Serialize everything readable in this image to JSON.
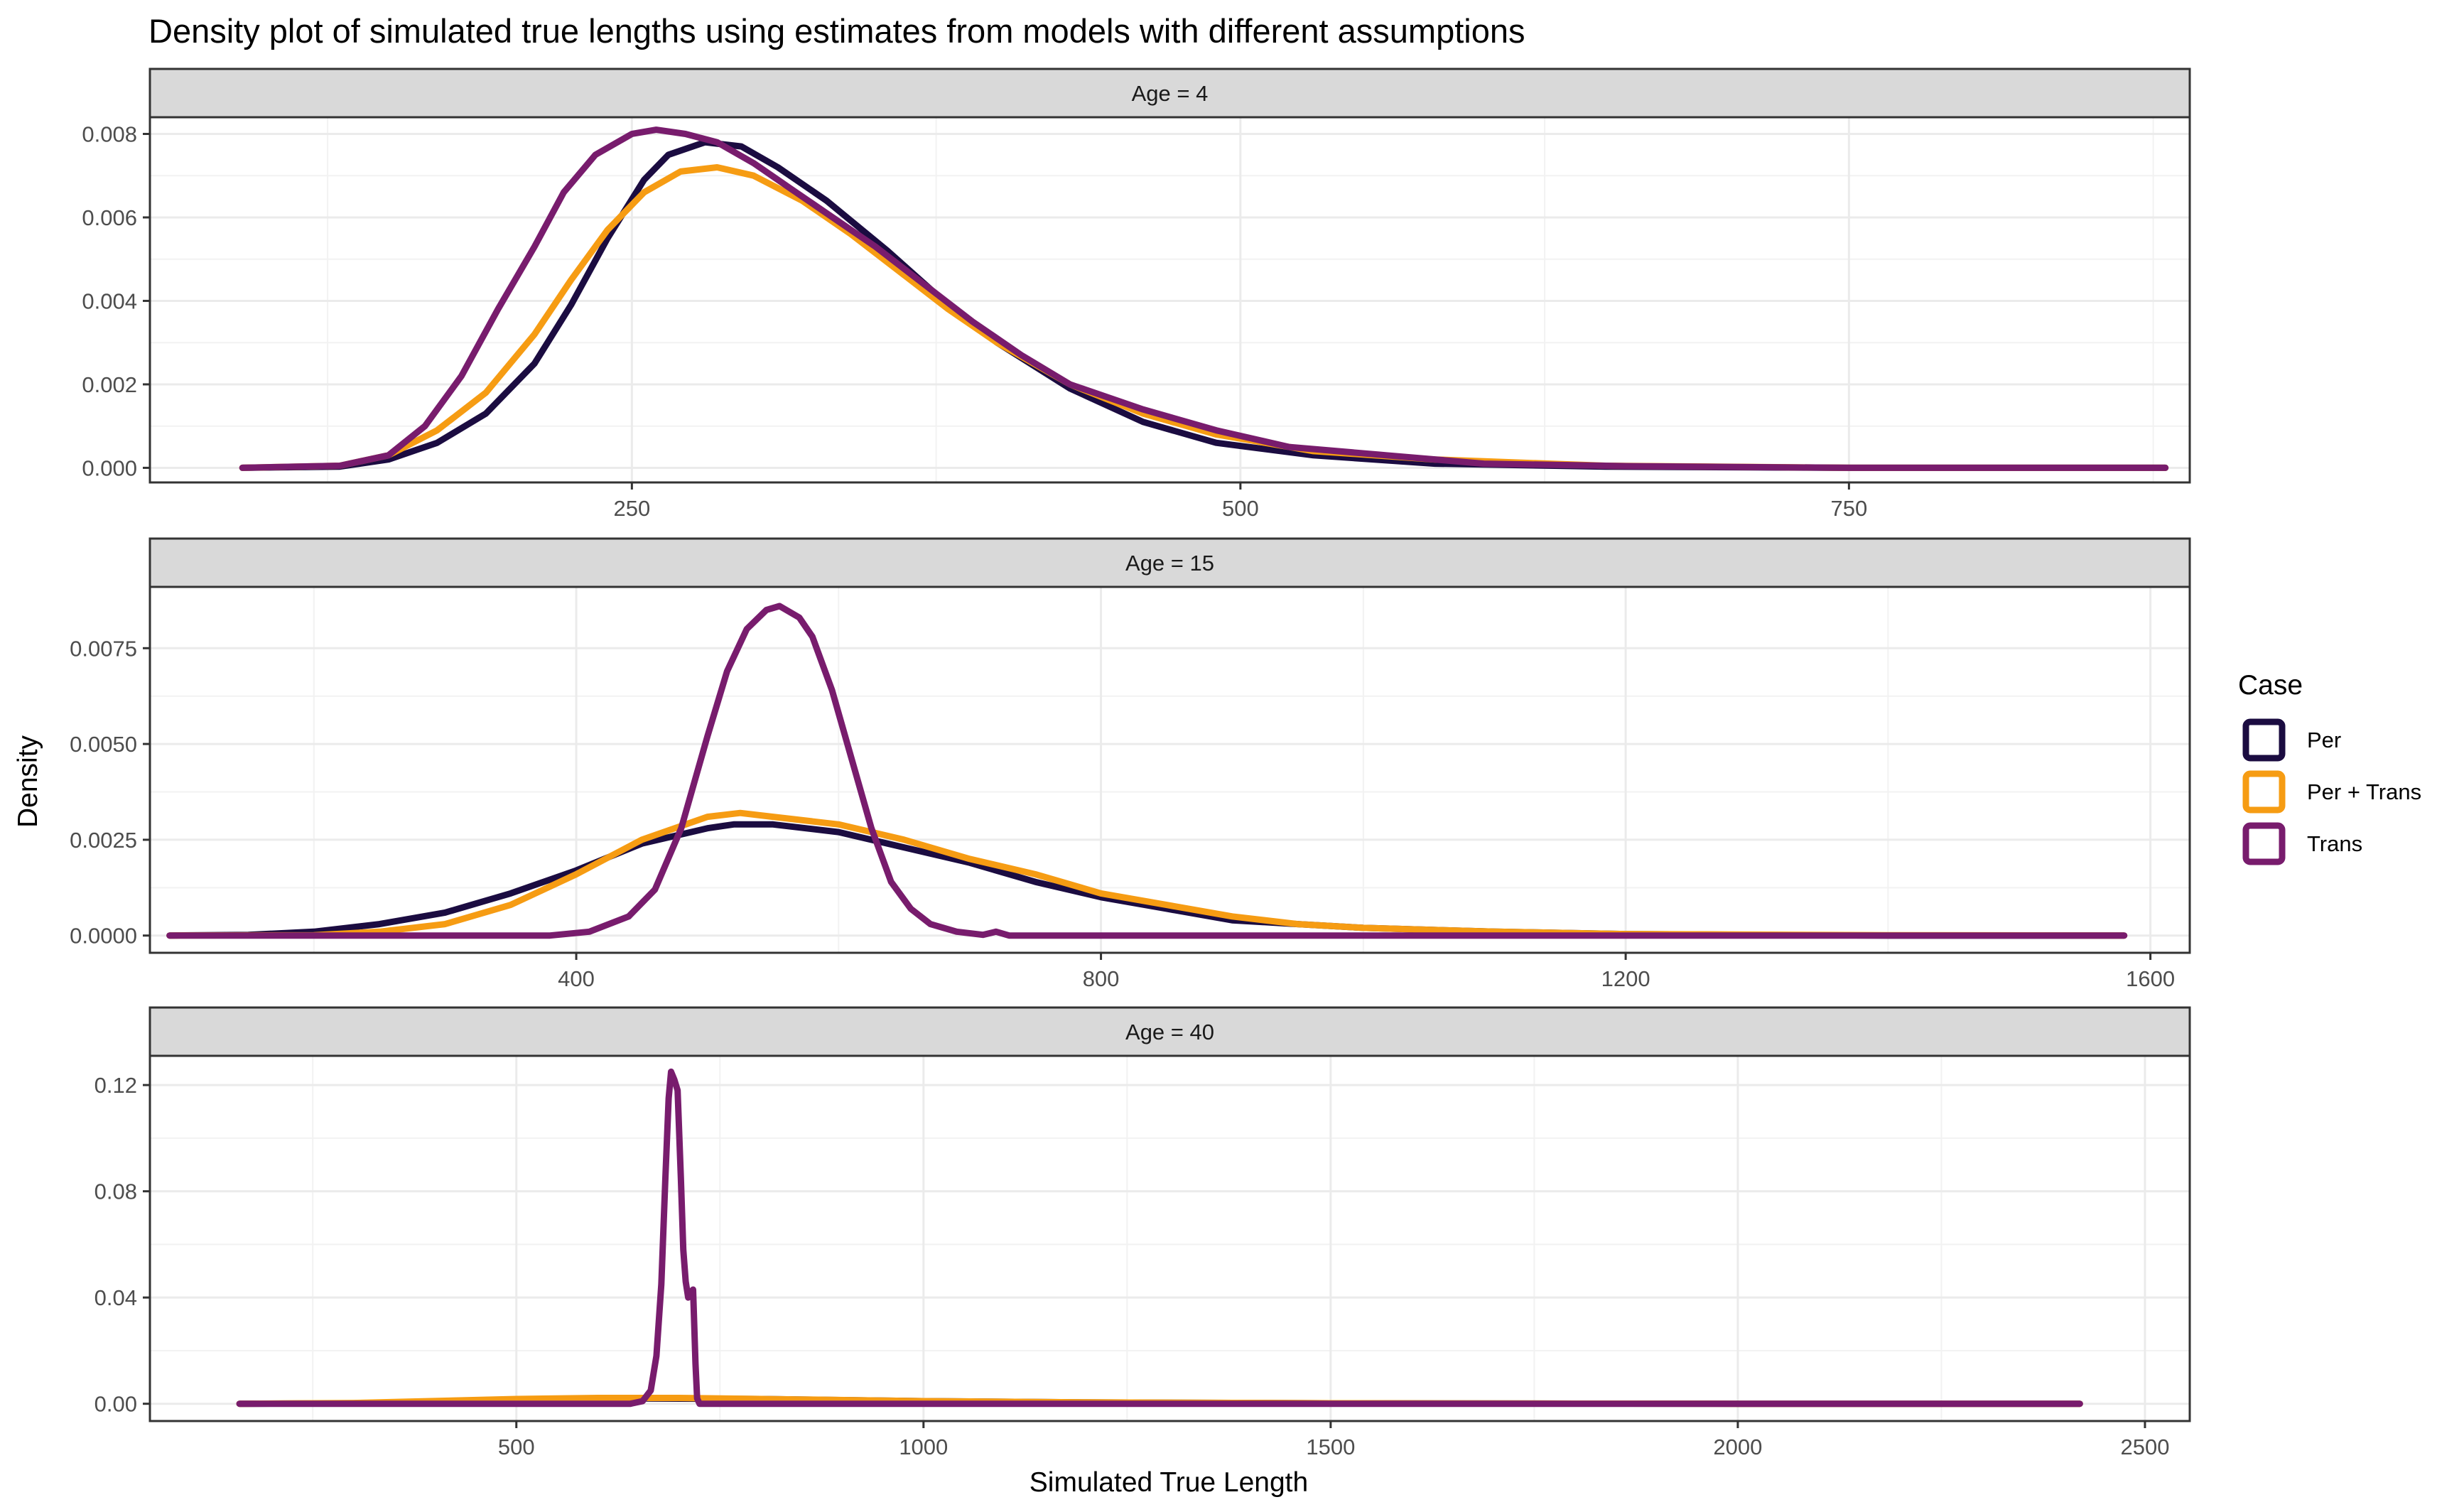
{
  "chart_data": {
    "type": "line",
    "title": "Density plot of simulated true lengths using estimates from models with different assumptions",
    "xlabel": "Simulated True Length",
    "ylabel": "Density",
    "grid": true,
    "legend": {
      "title": "Case",
      "placement": "right",
      "entries": [
        {
          "name": "Per",
          "color": "#1B0C41"
        },
        {
          "name": "Per + Trans",
          "color": "#F69C13"
        },
        {
          "name": "Trans",
          "color": "#781C6D"
        }
      ]
    },
    "panels": [
      {
        "strip": "Age = 4",
        "xlim": [
          52,
          890
        ],
        "ylim": [
          -0.00035,
          0.0084
        ],
        "x_ticks": [
          250,
          500,
          750
        ],
        "x_tick_labels": [
          "250",
          "500",
          "750"
        ],
        "x_minor": [
          125,
          375,
          625,
          875
        ],
        "y_ticks": [
          0,
          0.002,
          0.004,
          0.006,
          0.008
        ],
        "y_tick_labels": [
          "0.000",
          "0.002",
          "0.004",
          "0.006",
          "0.008"
        ],
        "series": [
          {
            "name": "Per",
            "color": "#1B0C41",
            "points": [
              [
                90,
                0
              ],
              [
                130,
                3e-05
              ],
              [
                150,
                0.0002
              ],
              [
                170,
                0.0006
              ],
              [
                190,
                0.0013
              ],
              [
                210,
                0.0025
              ],
              [
                225,
                0.0039
              ],
              [
                240,
                0.0055
              ],
              [
                255,
                0.0069
              ],
              [
                265,
                0.0075
              ],
              [
                280,
                0.0078
              ],
              [
                295,
                0.0077
              ],
              [
                310,
                0.0072
              ],
              [
                330,
                0.0064
              ],
              [
                355,
                0.0052
              ],
              [
                380,
                0.0039
              ],
              [
                400,
                0.003
              ],
              [
                430,
                0.0019
              ],
              [
                460,
                0.0011
              ],
              [
                490,
                0.0006
              ],
              [
                530,
                0.0003
              ],
              [
                580,
                0.0001
              ],
              [
                650,
                3e-05
              ],
              [
                750,
                0
              ],
              [
                880,
                0
              ]
            ]
          },
          {
            "name": "Per + Trans",
            "color": "#F69C13",
            "points": [
              [
                90,
                0
              ],
              [
                130,
                5e-05
              ],
              [
                150,
                0.0003
              ],
              [
                170,
                0.0009
              ],
              [
                190,
                0.0018
              ],
              [
                210,
                0.0032
              ],
              [
                225,
                0.0045
              ],
              [
                240,
                0.0057
              ],
              [
                255,
                0.0066
              ],
              [
                270,
                0.0071
              ],
              [
                285,
                0.0072
              ],
              [
                300,
                0.007
              ],
              [
                320,
                0.0064
              ],
              [
                340,
                0.0056
              ],
              [
                360,
                0.0047
              ],
              [
                380,
                0.0038
              ],
              [
                400,
                0.003
              ],
              [
                430,
                0.002
              ],
              [
                460,
                0.0013
              ],
              [
                490,
                0.0008
              ],
              [
                530,
                0.0004
              ],
              [
                580,
                0.0002
              ],
              [
                650,
                5e-05
              ],
              [
                750,
                0
              ],
              [
                880,
                0
              ]
            ]
          },
          {
            "name": "Trans",
            "color": "#781C6D",
            "points": [
              [
                90,
                0
              ],
              [
                130,
                5e-05
              ],
              [
                150,
                0.0003
              ],
              [
                165,
                0.001
              ],
              [
                180,
                0.0022
              ],
              [
                195,
                0.0038
              ],
              [
                210,
                0.0053
              ],
              [
                222,
                0.0066
              ],
              [
                235,
                0.0075
              ],
              [
                250,
                0.008
              ],
              [
                260,
                0.0081
              ],
              [
                272,
                0.008
              ],
              [
                285,
                0.0078
              ],
              [
                300,
                0.0073
              ],
              [
                315,
                0.0067
              ],
              [
                330,
                0.0061
              ],
              [
                350,
                0.0053
              ],
              [
                370,
                0.0044
              ],
              [
                390,
                0.0035
              ],
              [
                410,
                0.0027
              ],
              [
                430,
                0.002
              ],
              [
                460,
                0.0014
              ],
              [
                490,
                0.0009
              ],
              [
                520,
                0.0005
              ],
              [
                560,
                0.0003
              ],
              [
                600,
                0.0001
              ],
              [
                660,
                4e-05
              ],
              [
                750,
                0
              ],
              [
                880,
                0
              ]
            ]
          }
        ]
      },
      {
        "strip": "Age = 15",
        "xlim": [
          75,
          1630
        ],
        "ylim": [
          -0.00045,
          0.0091
        ],
        "x_ticks": [
          400,
          800,
          1200,
          1600
        ],
        "x_tick_labels": [
          "400",
          "800",
          "1200",
          "1600"
        ],
        "x_minor": [
          200,
          600,
          1000,
          1400
        ],
        "y_ticks": [
          0,
          0.0025,
          0.005,
          0.0075
        ],
        "y_tick_labels": [
          "0.0000",
          "0.0025",
          "0.0050",
          "0.0075"
        ],
        "series": [
          {
            "name": "Per",
            "color": "#1B0C41",
            "points": [
              [
                90,
                0
              ],
              [
                150,
                2e-05
              ],
              [
                200,
                0.0001
              ],
              [
                250,
                0.0003
              ],
              [
                300,
                0.0006
              ],
              [
                350,
                0.0011
              ],
              [
                400,
                0.0017
              ],
              [
                450,
                0.0024
              ],
              [
                500,
                0.0028
              ],
              [
                520,
                0.0029
              ],
              [
                550,
                0.0029
              ],
              [
                600,
                0.0027
              ],
              [
                650,
                0.0023
              ],
              [
                700,
                0.0019
              ],
              [
                750,
                0.0014
              ],
              [
                800,
                0.001
              ],
              [
                850,
                0.0007
              ],
              [
                900,
                0.0004
              ],
              [
                950,
                0.0003
              ],
              [
                1000,
                0.0002
              ],
              [
                1100,
                0.0001
              ],
              [
                1200,
                4e-05
              ],
              [
                1300,
                2e-05
              ],
              [
                1400,
                0
              ],
              [
                1580,
                0
              ]
            ]
          },
          {
            "name": "Per + Trans",
            "color": "#F69C13",
            "points": [
              [
                90,
                0
              ],
              [
                200,
                1e-05
              ],
              [
                250,
                0.0001
              ],
              [
                300,
                0.0003
              ],
              [
                350,
                0.0008
              ],
              [
                400,
                0.0016
              ],
              [
                450,
                0.0025
              ],
              [
                500,
                0.0031
              ],
              [
                525,
                0.0032
              ],
              [
                550,
                0.0031
              ],
              [
                600,
                0.0029
              ],
              [
                650,
                0.0025
              ],
              [
                700,
                0.002
              ],
              [
                750,
                0.0016
              ],
              [
                800,
                0.0011
              ],
              [
                850,
                0.0008
              ],
              [
                900,
                0.0005
              ],
              [
                950,
                0.0003
              ],
              [
                1000,
                0.0002
              ],
              [
                1100,
                0.0001
              ],
              [
                1200,
                4e-05
              ],
              [
                1400,
                1e-05
              ],
              [
                1580,
                0
              ]
            ]
          },
          {
            "name": "Trans",
            "color": "#781C6D",
            "points": [
              [
                90,
                0
              ],
              [
                380,
                0
              ],
              [
                410,
                0.0001
              ],
              [
                440,
                0.0005
              ],
              [
                460,
                0.0012
              ],
              [
                480,
                0.0028
              ],
              [
                500,
                0.0052
              ],
              [
                515,
                0.0069
              ],
              [
                530,
                0.008
              ],
              [
                545,
                0.0085
              ],
              [
                555,
                0.0086
              ],
              [
                570,
                0.0083
              ],
              [
                580,
                0.0078
              ],
              [
                595,
                0.0064
              ],
              [
                610,
                0.0046
              ],
              [
                625,
                0.0028
              ],
              [
                640,
                0.0014
              ],
              [
                655,
                0.0007
              ],
              [
                670,
                0.0003
              ],
              [
                690,
                0.0001
              ],
              [
                710,
                2e-05
              ],
              [
                720,
                0.0001
              ],
              [
                730,
                0
              ],
              [
                900,
                0
              ],
              [
                1580,
                0
              ]
            ]
          }
        ]
      },
      {
        "strip": "Age = 40",
        "xlim": [
          50,
          2555
        ],
        "ylim": [
          -0.0065,
          0.131
        ],
        "x_ticks": [
          500,
          1000,
          1500,
          2000,
          2500
        ],
        "x_tick_labels": [
          "500",
          "1000",
          "1500",
          "2000",
          "2500"
        ],
        "x_minor": [
          250,
          750,
          1250,
          1750,
          2250
        ],
        "y_ticks": [
          0,
          0.04,
          0.08,
          0.12
        ],
        "y_tick_labels": [
          "0.00",
          "0.04",
          "0.08",
          "0.12"
        ],
        "series": [
          {
            "name": "Per",
            "color": "#1B0C41",
            "points": [
              [
                160,
                0
              ],
              [
                300,
                0.0002
              ],
              [
                500,
                0.0015
              ],
              [
                650,
                0.002
              ],
              [
                800,
                0.0018
              ],
              [
                1000,
                0.001
              ],
              [
                1200,
                0.0005
              ],
              [
                1500,
                0.0002
              ],
              [
                1800,
                5e-05
              ],
              [
                2000,
                0
              ],
              [
                2420,
                0
              ]
            ]
          },
          {
            "name": "Per + Trans",
            "color": "#F69C13",
            "points": [
              [
                160,
                0
              ],
              [
                300,
                0.0003
              ],
              [
                500,
                0.0018
              ],
              [
                600,
                0.0022
              ],
              [
                700,
                0.0022
              ],
              [
                850,
                0.0016
              ],
              [
                1000,
                0.001
              ],
              [
                1200,
                0.0005
              ],
              [
                1500,
                0.0002
              ],
              [
                1800,
                5e-05
              ],
              [
                2000,
                0
              ],
              [
                2420,
                0
              ]
            ]
          },
          {
            "name": "Trans",
            "color": "#781C6D",
            "points": [
              [
                160,
                0
              ],
              [
                640,
                0
              ],
              [
                655,
                0.001
              ],
              [
                665,
                0.005
              ],
              [
                672,
                0.018
              ],
              [
                678,
                0.045
              ],
              [
                683,
                0.085
              ],
              [
                687,
                0.115
              ],
              [
                690,
                0.125
              ],
              [
                694,
                0.122
              ],
              [
                698,
                0.118
              ],
              [
                702,
                0.085
              ],
              [
                705,
                0.058
              ],
              [
                708,
                0.046
              ],
              [
                711,
                0.04
              ],
              [
                714,
                0.042
              ],
              [
                717,
                0.043
              ],
              [
                720,
                0.015
              ],
              [
                722,
                0.002
              ],
              [
                725,
                0
              ],
              [
                900,
                0
              ],
              [
                2420,
                0
              ]
            ]
          }
        ]
      }
    ]
  }
}
